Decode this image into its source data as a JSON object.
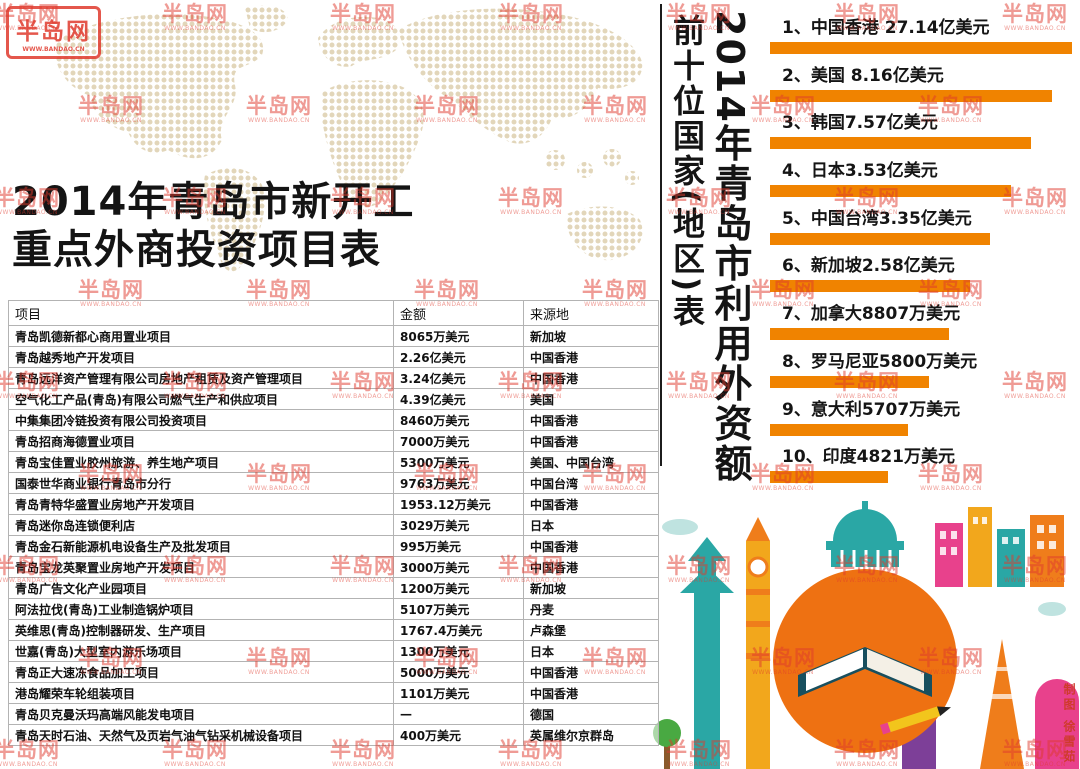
{
  "meta": {
    "watermark_text": "半岛网",
    "watermark_sub": "WWW.BANDAO.CN",
    "credit": "制图 徐雪茹"
  },
  "left": {
    "title_line1": "2014年青岛市新开工",
    "title_line2": "重点外商投资项目表",
    "table": {
      "headers": [
        "项目",
        "金额",
        "来源地"
      ],
      "rows": [
        [
          "青岛凯德新都心商用置业项目",
          "8065万美元",
          "新加坡"
        ],
        [
          "青岛越秀地产开发项目",
          "2.26亿美元",
          "中国香港"
        ],
        [
          "青岛远洋资产管理有限公司房地产租赁及资产管理项目",
          "3.24亿美元",
          "中国香港"
        ],
        [
          "空气化工产品(青岛)有限公司燃气生产和供应项目",
          "4.39亿美元",
          "美国"
        ],
        [
          "中集集团冷链投资有限公司投资项目",
          "8460万美元",
          "中国香港"
        ],
        [
          "青岛招商海德置业项目",
          "7000万美元",
          "中国香港"
        ],
        [
          "青岛宝佳置业胶州旅游、养生地产项目",
          "5300万美元",
          "美国、中国台湾"
        ],
        [
          "国泰世华商业银行青岛市分行",
          "9763万美元",
          "中国台湾"
        ],
        [
          "青岛青特华盛置业房地产开发项目",
          "1953.12万美元",
          "中国香港"
        ],
        [
          "青岛迷你岛连锁便利店",
          "3029万美元",
          "日本"
        ],
        [
          "青岛金石新能源机电设备生产及批发项目",
          "995万美元",
          "中国香港"
        ],
        [
          "青岛宝龙英聚置业房地产开发项目",
          "3000万美元",
          "中国香港"
        ],
        [
          "青岛广告文化产业园项目",
          "1200万美元",
          "新加坡"
        ],
        [
          "阿法拉伐(青岛)工业制造锅炉项目",
          "5107万美元",
          "丹麦"
        ],
        [
          "英维思(青岛)控制器研发、生产项目",
          "1767.4万美元",
          "卢森堡"
        ],
        [
          "世嘉(青岛)大型室内游乐场项目",
          "1300万美元",
          "日本"
        ],
        [
          "青岛正大速冻食品加工项目",
          "5000万美元",
          "中国香港"
        ],
        [
          "港岛耀荣车轮组装项目",
          "1101万美元",
          "中国香港"
        ],
        [
          "青岛贝克曼沃玛高端风能发电项目",
          "—",
          "德国"
        ],
        [
          "青岛天时石油、天然气及页岩气油气钻采机械设备项目",
          "400万美元",
          "英属维尔京群岛"
        ]
      ]
    }
  },
  "right": {
    "vertical_title1": "前十位国家(地区)表",
    "vertical_title2": "2014年青岛市利用外资额",
    "ranking": [
      {
        "num": "1、",
        "text": "中国香港 27.14亿美元"
      },
      {
        "num": "2、",
        "text": "美国 8.16亿美元"
      },
      {
        "num": "3、",
        "text": "韩国7.57亿美元"
      },
      {
        "num": "4、",
        "text": "日本3.53亿美元"
      },
      {
        "num": "5、",
        "text": "中国台湾3.35亿美元"
      },
      {
        "num": "6、",
        "text": "新加坡2.58亿美元"
      },
      {
        "num": "7、",
        "text": "加拿大8807万美元"
      },
      {
        "num": "8、",
        "text": "罗马尼亚5800万美元"
      },
      {
        "num": "9、",
        "text": "意大利5707万美元"
      },
      {
        "num": "10、",
        "text": "印度4821万美元"
      }
    ]
  },
  "chart_data": [
    {
      "type": "bar",
      "title": "2014年青岛市利用外资额 前十位国家(地区)表",
      "categories": [
        "中国香港",
        "美国",
        "韩国",
        "日本",
        "中国台湾",
        "新加坡",
        "加拿大",
        "罗马尼亚",
        "意大利",
        "印度"
      ],
      "values": [
        27.14,
        8.16,
        7.57,
        3.53,
        3.35,
        2.58,
        0.8807,
        0.58,
        0.5707,
        0.4821
      ],
      "unit": "亿美元",
      "value_labels": [
        "27.14亿美元",
        "8.16亿美元",
        "7.57亿美元",
        "3.53亿美元",
        "3.35亿美元",
        "2.58亿美元",
        "8807万美元",
        "5800万美元",
        "5707万美元",
        "4821万美元"
      ],
      "orientation": "horizontal",
      "bar_color": "#f08300",
      "bar_style": "rank-stylized-decreasing-width",
      "legend": "none",
      "grid": false
    },
    {
      "type": "table",
      "title": "2014年青岛市新开工重点外商投资项目表",
      "headers": [
        "项目",
        "金额",
        "来源地"
      ],
      "rows": [
        [
          "青岛凯德新都心商用置业项目",
          "8065万美元",
          "新加坡"
        ],
        [
          "青岛越秀地产开发项目",
          "2.26亿美元",
          "中国香港"
        ],
        [
          "青岛远洋资产管理有限公司房地产租赁及资产管理项目",
          "3.24亿美元",
          "中国香港"
        ],
        [
          "空气化工产品(青岛)有限公司燃气生产和供应项目",
          "4.39亿美元",
          "美国"
        ],
        [
          "中集集团冷链投资有限公司投资项目",
          "8460万美元",
          "中国香港"
        ],
        [
          "青岛招商海德置业项目",
          "7000万美元",
          "中国香港"
        ],
        [
          "青岛宝佳置业胶州旅游、养生地产项目",
          "5300万美元",
          "美国、中国台湾"
        ],
        [
          "国泰世华商业银行青岛市分行",
          "9763万美元",
          "中国台湾"
        ],
        [
          "青岛青特华盛置业房地产开发项目",
          "1953.12万美元",
          "中国香港"
        ],
        [
          "青岛迷你岛连锁便利店",
          "3029万美元",
          "日本"
        ],
        [
          "青岛金石新能源机电设备生产及批发项目",
          "995万美元",
          "中国香港"
        ],
        [
          "青岛宝龙英聚置业房地产开发项目",
          "3000万美元",
          "中国香港"
        ],
        [
          "青岛广告文化产业园项目",
          "1200万美元",
          "新加坡"
        ],
        [
          "阿法拉伐(青岛)工业制造锅炉项目",
          "5107万美元",
          "丹麦"
        ],
        [
          "英维思(青岛)控制器研发、生产项目",
          "1767.4万美元",
          "卢森堡"
        ],
        [
          "世嘉(青岛)大型室内游乐场项目",
          "1300万美元",
          "日本"
        ],
        [
          "青岛正大速冻食品加工项目",
          "5000万美元",
          "中国香港"
        ],
        [
          "港岛耀荣车轮组装项目",
          "1101万美元",
          "中国香港"
        ],
        [
          "青岛贝克曼沃玛高端风能发电项目",
          "—",
          "德国"
        ],
        [
          "青岛天时石油、天然气及页岩气油气钻采机械设备项目",
          "400万美元",
          "英属维尔京群岛"
        ]
      ]
    }
  ]
}
